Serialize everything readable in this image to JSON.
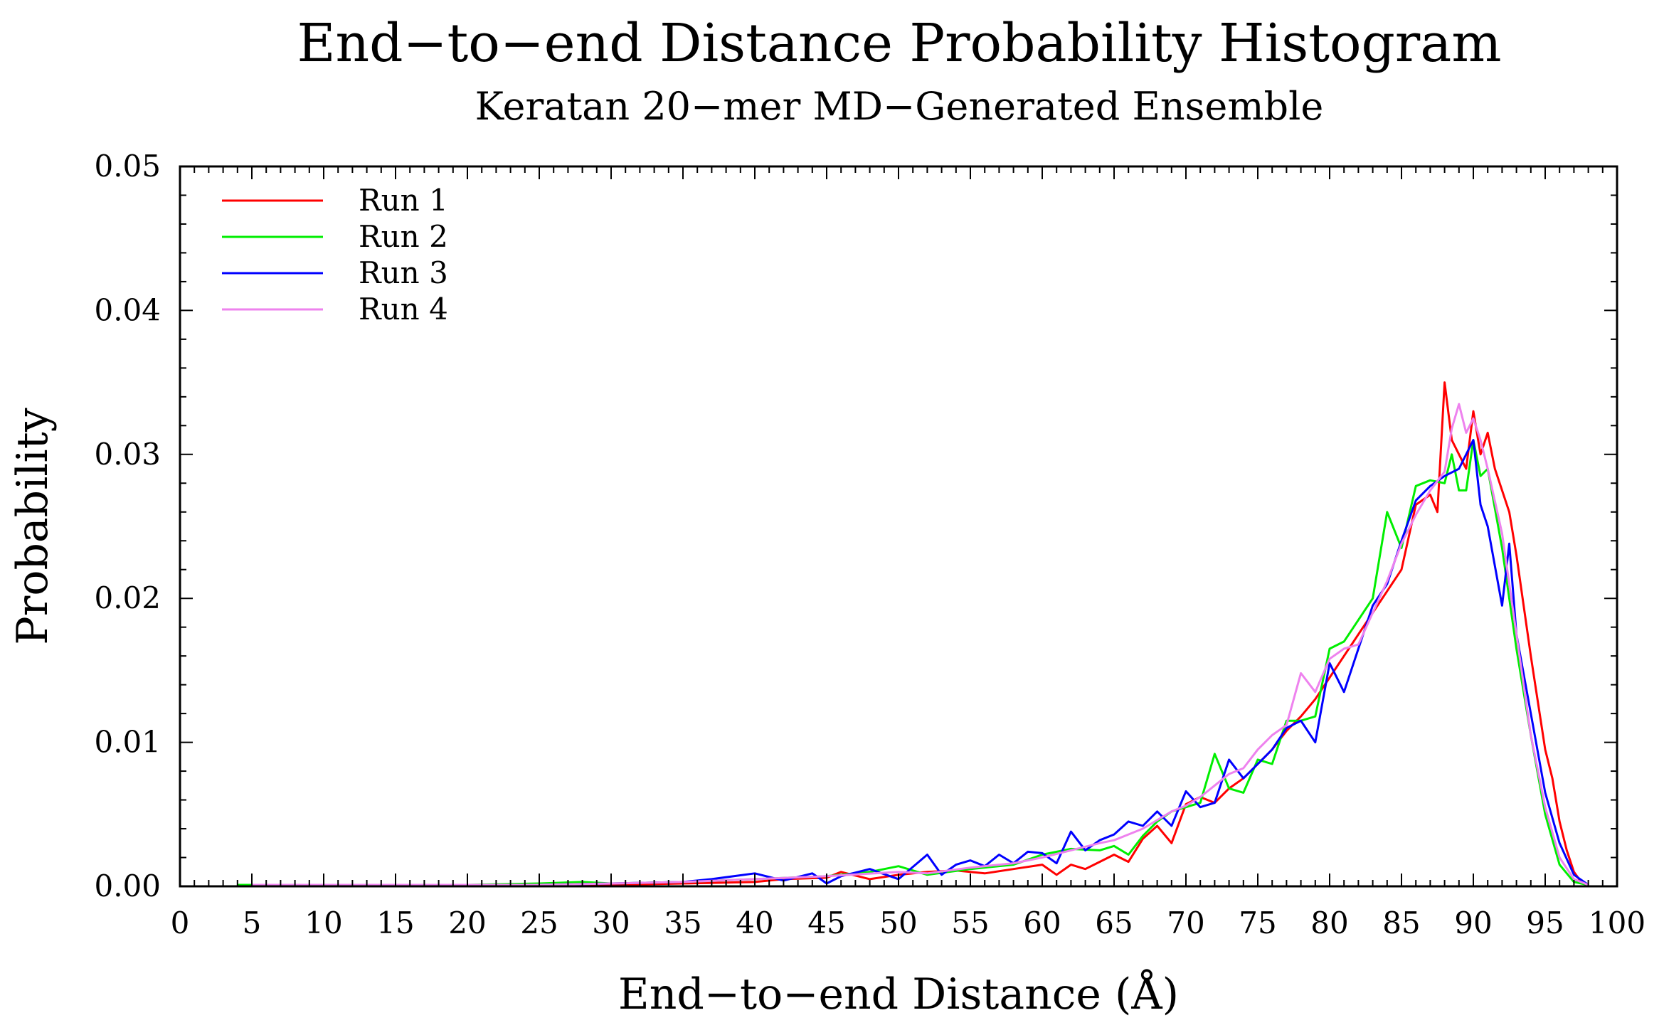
{
  "chart_data": {
    "type": "line",
    "title": "End−to−end Distance Probability Histogram",
    "subtitle": "Keratan 20−mer MD−Generated Ensemble",
    "xlabel": "End−to−end Distance (Å)",
    "ylabel": "Probability",
    "xlim": [
      0,
      100
    ],
    "ylim": [
      0,
      0.05
    ],
    "x_ticks": [
      0,
      5,
      10,
      15,
      20,
      25,
      30,
      35,
      40,
      45,
      50,
      55,
      60,
      65,
      70,
      75,
      80,
      85,
      90,
      95,
      100
    ],
    "x_tick_labels": [
      "0",
      "5",
      "10",
      "15",
      "20",
      "25",
      "30",
      "35",
      "40",
      "45",
      "50",
      "55",
      "60",
      "65",
      "70",
      "75",
      "80",
      "85",
      "90",
      "95",
      "100"
    ],
    "y_ticks": [
      0,
      0.01,
      0.02,
      0.03,
      0.04,
      0.05
    ],
    "y_tick_labels": [
      "0.00",
      "0.01",
      "0.02",
      "0.03",
      "0.04",
      "0.05"
    ],
    "grid": false,
    "legend_position": "top-left",
    "series": [
      {
        "name": "Run 1",
        "color": "#ff0000",
        "x": [
          4,
          5,
          8,
          10,
          13,
          15,
          20,
          25,
          30,
          35,
          40,
          42,
          45,
          46,
          48,
          50,
          52,
          54,
          56,
          58,
          60,
          61,
          62,
          63,
          64,
          65,
          66,
          67,
          68,
          69,
          70,
          71,
          72,
          73,
          74,
          75,
          76,
          77,
          78,
          79,
          80,
          81,
          82,
          83,
          84,
          85,
          86,
          87,
          87.5,
          88,
          88.5,
          89,
          89.5,
          90,
          90.5,
          91,
          91.5,
          92,
          92.5,
          93,
          94,
          95,
          95.5,
          96,
          96.5,
          97,
          97.5,
          98
        ],
        "y": [
          0.0001,
          0.0001,
          0.0001,
          0.0001,
          0.0001,
          0.0001,
          0.0001,
          0.0001,
          0.0001,
          0.0002,
          0.0003,
          0.0005,
          0.0006,
          0.001,
          0.0005,
          0.0008,
          0.001,
          0.0011,
          0.0009,
          0.0012,
          0.0015,
          0.0008,
          0.0015,
          0.0012,
          0.0017,
          0.0022,
          0.0017,
          0.0033,
          0.0042,
          0.003,
          0.0057,
          0.0062,
          0.0058,
          0.0068,
          0.0075,
          0.0085,
          0.0095,
          0.0108,
          0.0118,
          0.013,
          0.0145,
          0.016,
          0.0175,
          0.019,
          0.0205,
          0.022,
          0.0265,
          0.0272,
          0.026,
          0.035,
          0.031,
          0.03,
          0.029,
          0.033,
          0.03,
          0.0315,
          0.029,
          0.0275,
          0.026,
          0.023,
          0.016,
          0.0095,
          0.0075,
          0.0045,
          0.0025,
          0.001,
          0.0003,
          0.0001
        ]
      },
      {
        "name": "Run 2",
        "color": "#00ee00",
        "x": [
          4,
          10,
          15,
          20,
          25,
          28,
          30,
          35,
          40,
          45,
          48,
          50,
          52,
          55,
          58,
          60,
          62,
          64,
          65,
          66,
          67,
          68,
          69,
          70,
          71,
          72,
          73,
          74,
          75,
          76,
          77,
          78,
          79,
          80,
          81,
          82,
          83,
          84,
          85,
          86,
          87,
          88,
          88.5,
          89,
          89.5,
          90,
          90.5,
          91,
          92,
          93,
          94,
          95,
          96,
          97,
          98
        ],
        "y": [
          0.0001,
          0.0001,
          0.0001,
          0.0001,
          0.0002,
          0.0003,
          0.0002,
          0.0003,
          0.0005,
          0.0007,
          0.001,
          0.0014,
          0.0008,
          0.0012,
          0.0015,
          0.0022,
          0.0026,
          0.0025,
          0.0028,
          0.0022,
          0.0035,
          0.0045,
          0.0052,
          0.0055,
          0.0058,
          0.0092,
          0.0068,
          0.0065,
          0.0088,
          0.0085,
          0.0115,
          0.0115,
          0.0118,
          0.0165,
          0.017,
          0.0185,
          0.02,
          0.026,
          0.0235,
          0.0278,
          0.0282,
          0.028,
          0.03,
          0.0275,
          0.0275,
          0.031,
          0.0285,
          0.029,
          0.0235,
          0.0165,
          0.0105,
          0.005,
          0.0015,
          0.0003,
          0.0001
        ]
      },
      {
        "name": "Run 3",
        "color": "#0000ff",
        "x": [
          5,
          10,
          15,
          20,
          25,
          30,
          35,
          37,
          40,
          42,
          44,
          45,
          46,
          48,
          50,
          52,
          53,
          54,
          55,
          56,
          57,
          58,
          59,
          60,
          61,
          62,
          63,
          64,
          65,
          66,
          67,
          68,
          69,
          70,
          71,
          72,
          73,
          74,
          75,
          76,
          77,
          78,
          79,
          80,
          81,
          82,
          83,
          84,
          85,
          86,
          87,
          88,
          89,
          90,
          90.5,
          91,
          92,
          92.5,
          93,
          94,
          95,
          96,
          97,
          98
        ],
        "y": [
          0.0001,
          0.0001,
          0.0001,
          0.0001,
          0.0001,
          0.0002,
          0.0003,
          0.0005,
          0.0009,
          0.0004,
          0.0009,
          0.0002,
          0.0007,
          0.0012,
          0.0005,
          0.0022,
          0.0008,
          0.0015,
          0.0018,
          0.0014,
          0.0022,
          0.0016,
          0.0024,
          0.0023,
          0.0016,
          0.0038,
          0.0025,
          0.0032,
          0.0036,
          0.0045,
          0.0042,
          0.0052,
          0.0042,
          0.0066,
          0.0055,
          0.0058,
          0.0088,
          0.0075,
          0.0085,
          0.0095,
          0.011,
          0.0115,
          0.01,
          0.0155,
          0.0135,
          0.0165,
          0.0195,
          0.021,
          0.024,
          0.0268,
          0.0278,
          0.0285,
          0.029,
          0.031,
          0.0265,
          0.025,
          0.0195,
          0.0238,
          0.0175,
          0.012,
          0.0065,
          0.003,
          0.0008,
          0.0001
        ]
      },
      {
        "name": "Run 4",
        "color": "#ee82ee",
        "x": [
          5,
          10,
          15,
          20,
          25,
          30,
          35,
          40,
          45,
          50,
          52,
          55,
          58,
          60,
          62,
          64,
          65,
          66,
          67,
          68,
          69,
          70,
          71,
          72,
          73,
          74,
          75,
          76,
          77,
          78,
          79,
          80,
          81,
          82,
          83,
          84,
          85,
          86,
          87,
          88,
          88.5,
          89,
          89.5,
          90,
          90.5,
          91,
          92,
          93,
          94,
          95,
          96,
          97,
          98
        ],
        "y": [
          0.0001,
          0.0001,
          0.0001,
          0.0001,
          0.0001,
          0.0002,
          0.0003,
          0.0005,
          0.0007,
          0.001,
          0.0009,
          0.0013,
          0.0016,
          0.002,
          0.0025,
          0.003,
          0.0032,
          0.0036,
          0.004,
          0.0046,
          0.0052,
          0.0056,
          0.0062,
          0.007,
          0.0078,
          0.0082,
          0.0095,
          0.0105,
          0.0112,
          0.0148,
          0.0135,
          0.0158,
          0.0165,
          0.0168,
          0.019,
          0.0212,
          0.0238,
          0.0258,
          0.0275,
          0.0288,
          0.0318,
          0.0335,
          0.0315,
          0.0325,
          0.031,
          0.029,
          0.0245,
          0.0175,
          0.0105,
          0.0055,
          0.002,
          0.0005,
          0.0001
        ]
      }
    ]
  }
}
